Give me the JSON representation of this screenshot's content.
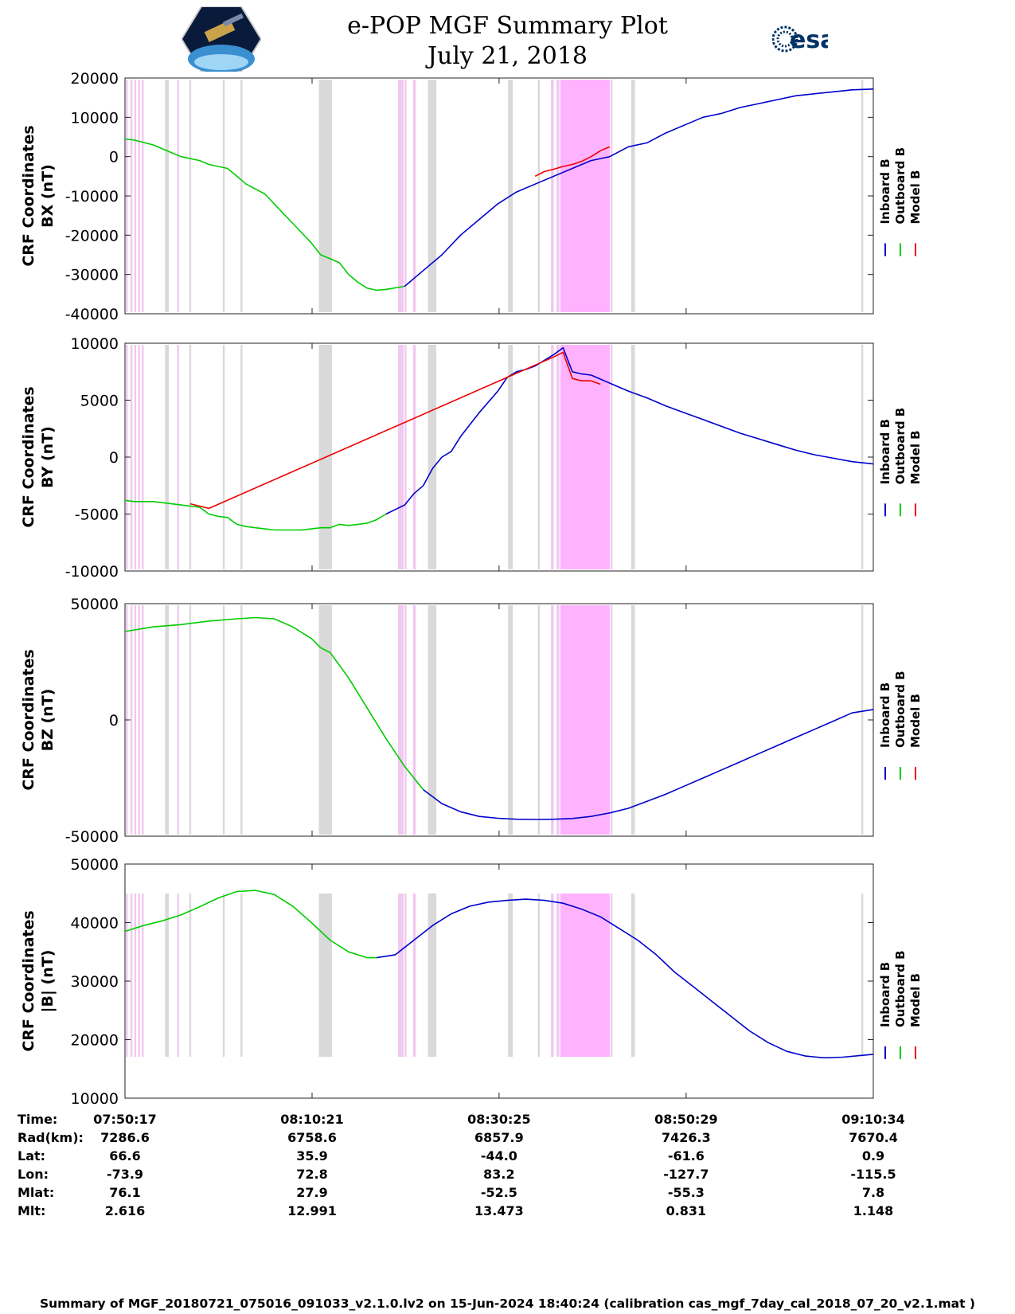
{
  "header": {
    "title": "e-POP MGF Summary Plot",
    "date": "July 21, 2018",
    "logo_left": "e-POP CASSIOPE mission logo",
    "logo_right_text": "esa"
  },
  "colors": {
    "inboard": "#0000cc",
    "outboard": "#00cc00",
    "model": "#ee0000",
    "gap_gray": "#d9d9d9",
    "gap_magenta": "#ffb3ff",
    "gap_pink": "#f0c8f0"
  },
  "legend": [
    "Inboard B",
    "Outboard B",
    "Model B"
  ],
  "chart_data": [
    {
      "type": "line",
      "ylabel": [
        "CRF Coordinates",
        "BX (nT)"
      ],
      "ylim": [
        -40000,
        20000
      ],
      "yticks": [
        "20000",
        "10000",
        "0",
        "-10000",
        "-20000",
        "-30000",
        "-40000"
      ],
      "xlim_min": [
        0,
        80.28
      ],
      "series": [
        {
          "name": "Outboard B",
          "x": [
            0,
            1,
            3,
            4,
            5,
            6,
            8,
            9,
            10,
            11,
            12,
            13,
            15,
            16,
            18,
            20,
            21,
            22,
            23,
            24,
            25,
            26,
            27,
            28,
            30
          ],
          "y": [
            4500,
            4200,
            3000,
            2000,
            1000,
            0,
            -1000,
            -2000,
            -2500,
            -3000,
            -5000,
            -7000,
            -9500,
            -12000,
            -17000,
            -22000,
            -25000,
            -26000,
            -27000,
            -30000,
            -32000,
            -33500,
            -34000,
            -33800,
            -33000
          ]
        },
        {
          "name": "Inboard B",
          "x": [
            30,
            32,
            34,
            36,
            38,
            40,
            42,
            44,
            46,
            48,
            50,
            52,
            54,
            56,
            58,
            60,
            62,
            64,
            66,
            68,
            70,
            72,
            74,
            76,
            78,
            80.28
          ],
          "y": [
            -33000,
            -29000,
            -25000,
            -20000,
            -16000,
            -12000,
            -9000,
            -7000,
            -5000,
            -3000,
            -1000,
            0,
            2500,
            3500,
            6000,
            8000,
            10000,
            11000,
            12500,
            13500,
            14500,
            15500,
            16000,
            16500,
            17000,
            17200
          ]
        },
        {
          "name": "Model B",
          "x": [
            44,
            45,
            46,
            47,
            48,
            49,
            50,
            51,
            52
          ],
          "y": [
            -5000,
            -3800,
            -3200,
            -2500,
            -2000,
            -1200,
            0,
            1500,
            2500
          ]
        }
      ]
    },
    {
      "type": "line",
      "ylabel": [
        "CRF Coordinates",
        "BY (nT)"
      ],
      "ylim": [
        -10000,
        10000
      ],
      "yticks": [
        "10000",
        "5000",
        "0",
        "-5000",
        "-10000"
      ],
      "series": [
        {
          "name": "Outboard B",
          "x": [
            0,
            1,
            2,
            3,
            4,
            5,
            6,
            7,
            8,
            9,
            10,
            11,
            12,
            13,
            14,
            15,
            16,
            17,
            18,
            19,
            20,
            21,
            22,
            23,
            24,
            25,
            26,
            27,
            28
          ],
          "y": [
            -3800,
            -3900,
            -3900,
            -3900,
            -4000,
            -4100,
            -4200,
            -4300,
            -4400,
            -5000,
            -5200,
            -5300,
            -5900,
            -6100,
            -6200,
            -6300,
            -6400,
            -6400,
            -6400,
            -6400,
            -6300,
            -6200,
            -6200,
            -5900,
            -6000,
            -5900,
            -5800,
            -5500,
            -5000
          ]
        },
        {
          "name": "Inboard B",
          "x": [
            28,
            29,
            30,
            31,
            32,
            33,
            34,
            35,
            36,
            38,
            40,
            41,
            42,
            43,
            44,
            45,
            46,
            47,
            48,
            49,
            50,
            52,
            54,
            56,
            58,
            60,
            62,
            64,
            66,
            68,
            70,
            72,
            74,
            76,
            78,
            80.28
          ],
          "y": [
            -5000,
            -4600,
            -4200,
            -3200,
            -2500,
            -1000,
            0,
            500,
            1800,
            3900,
            5800,
            7000,
            7500,
            7700,
            8000,
            8500,
            9000,
            9600,
            7500,
            7300,
            7200,
            6500,
            5800,
            5200,
            4500,
            3900,
            3300,
            2700,
            2100,
            1600,
            1100,
            600,
            200,
            -100,
            -400,
            -600
          ]
        },
        {
          "name": "Model B",
          "x": [
            7,
            8,
            9,
            46,
            47,
            48,
            49,
            50,
            51
          ],
          "y": [
            -4100,
            -4300,
            -4500,
            8800,
            9200,
            6900,
            6700,
            6700,
            6400
          ]
        }
      ]
    },
    {
      "type": "line",
      "ylabel": [
        "CRF Coordinates",
        "BZ (nT)"
      ],
      "ylim": [
        -50000,
        50000
      ],
      "yticks": [
        "50000",
        "0",
        "-50000"
      ],
      "series": [
        {
          "name": "Outboard B",
          "x": [
            0,
            3,
            6,
            9,
            12,
            14,
            16,
            18,
            20,
            21,
            22,
            24,
            26,
            28,
            30,
            32
          ],
          "y": [
            38000,
            40000,
            41000,
            42500,
            43500,
            44000,
            43500,
            40000,
            35000,
            31000,
            29000,
            18000,
            5000,
            -8000,
            -20000,
            -30000
          ]
        },
        {
          "name": "Inboard B",
          "x": [
            32,
            34,
            36,
            38,
            40,
            42,
            44,
            46,
            48,
            50,
            52,
            54,
            56,
            58,
            60,
            62,
            64,
            66,
            68,
            70,
            72,
            74,
            76,
            78,
            80.28
          ],
          "y": [
            -30000,
            -36000,
            -39500,
            -41500,
            -42300,
            -42700,
            -42800,
            -42700,
            -42400,
            -41500,
            -40000,
            -38000,
            -35000,
            -32000,
            -28500,
            -25000,
            -21500,
            -18000,
            -14500,
            -11000,
            -7500,
            -4000,
            -500,
            3000,
            4500
          ]
        },
        {
          "name": "Model B",
          "x": [],
          "y": []
        }
      ]
    },
    {
      "type": "line",
      "ylabel": [
        "CRF Coordinates",
        "|B| (nT)"
      ],
      "ylim": [
        10000,
        50000
      ],
      "yticks": [
        "50000",
        "40000",
        "30000",
        "20000",
        "10000"
      ],
      "series": [
        {
          "name": "Outboard B",
          "x": [
            0,
            2,
            4,
            6,
            8,
            10,
            12,
            14,
            16,
            18,
            20,
            22,
            24,
            26,
            27
          ],
          "y": [
            38500,
            39500,
            40300,
            41300,
            42700,
            44200,
            45300,
            45500,
            44800,
            42800,
            40000,
            37000,
            35000,
            34000,
            34000
          ]
        },
        {
          "name": "Inboard B",
          "x": [
            27,
            29,
            31,
            33,
            35,
            37,
            39,
            41,
            43,
            45,
            47,
            49,
            51,
            53,
            55,
            57,
            59,
            61,
            63,
            65,
            67,
            69,
            71,
            73,
            75,
            77,
            79,
            80.28
          ],
          "y": [
            34000,
            34500,
            37000,
            39500,
            41500,
            42800,
            43500,
            43800,
            44000,
            43800,
            43300,
            42300,
            41000,
            39000,
            37000,
            34500,
            31500,
            29000,
            26500,
            24000,
            21500,
            19500,
            18000,
            17200,
            16900,
            17000,
            17300,
            17500
          ]
        },
        {
          "name": "Model B",
          "x": [],
          "y": []
        }
      ]
    }
  ],
  "x_axis": {
    "unit": "minutes from 07:50:17",
    "tick_minutes": [
      0,
      20.07,
      40.13,
      60.2,
      80.28
    ]
  },
  "gaps": {
    "gray": [
      [
        4.3,
        4.7
      ],
      [
        6.9,
        7.1
      ],
      [
        10.5,
        10.7
      ],
      [
        12.4,
        12.6
      ],
      [
        20.8,
        22.2
      ],
      [
        32.5,
        33.4
      ],
      [
        41.1,
        41.6
      ],
      [
        44.3,
        44.5
      ],
      [
        54.3,
        54.7
      ],
      [
        79.0,
        79.2
      ]
    ],
    "pink_thin": [
      [
        0.1,
        0.3
      ],
      [
        0.6,
        0.8
      ],
      [
        1.0,
        1.2
      ],
      [
        1.4,
        1.6
      ],
      [
        1.8,
        2.0
      ],
      [
        5.6,
        5.8
      ],
      [
        29.3,
        29.9
      ],
      [
        30.0,
        30.2
      ],
      [
        30.9,
        31.2
      ],
      [
        45.7,
        46.0
      ],
      [
        46.3,
        46.6
      ],
      [
        51.6,
        52.0
      ],
      [
        52.1,
        52.3
      ]
    ],
    "magenta": [
      [
        46.7,
        52.0
      ]
    ]
  },
  "ephemeris": {
    "labels": [
      "Time:",
      "Rad(km):",
      "Lat:",
      "Lon:",
      "Mlat:",
      "Mlt:"
    ],
    "columns": [
      [
        "07:50:17",
        "7286.6",
        "66.6",
        "-73.9",
        "76.1",
        "2.616"
      ],
      [
        "08:10:21",
        "6758.6",
        "35.9",
        "72.8",
        "27.9",
        "12.991"
      ],
      [
        "08:30:25",
        "6857.9",
        "-44.0",
        "83.2",
        "-52.5",
        "13.473"
      ],
      [
        "08:50:29",
        "7426.3",
        "-61.6",
        "-127.7",
        "-55.3",
        "0.831"
      ],
      [
        "09:10:34",
        "7670.4",
        "0.9",
        "-115.5",
        "7.8",
        "1.148"
      ]
    ]
  },
  "footer": "Summary of MGF_20180721_075016_091033_v2.1.0.lv2 on 15-Jun-2024 18:40:24 (calibration cas_mgf_7day_cal_2018_07_20_v2.1.mat )"
}
